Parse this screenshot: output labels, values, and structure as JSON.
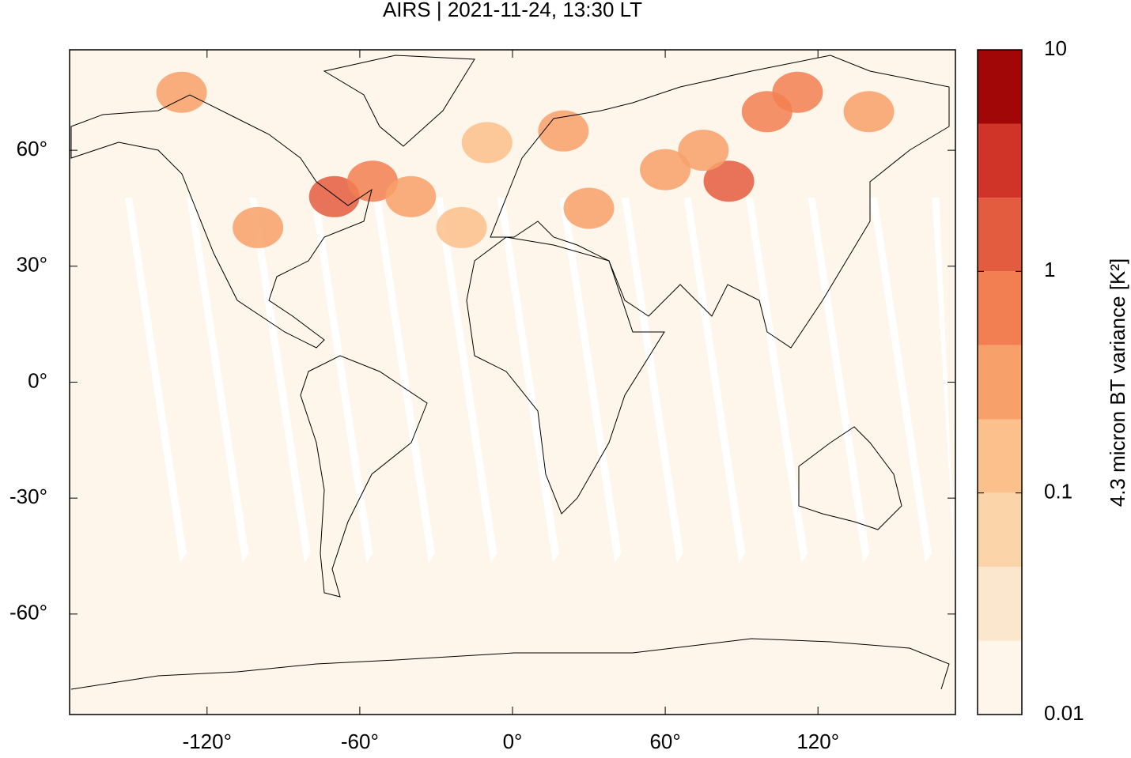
{
  "chart_data": {
    "type": "map",
    "title": "AIRS | 2021-11-24, 13:30 LT",
    "xlim": [
      -174,
      174
    ],
    "ylim": [
      -86,
      86
    ],
    "xticks": [
      {
        "value": -120,
        "label": "-120°"
      },
      {
        "value": -60,
        "label": "-60°"
      },
      {
        "value": 0,
        "label": "0°"
      },
      {
        "value": 60,
        "label": "60°"
      },
      {
        "value": 120,
        "label": "120°"
      }
    ],
    "yticks": [
      {
        "value": 60,
        "label": "60°"
      },
      {
        "value": 30,
        "label": "30°"
      },
      {
        "value": 0,
        "label": "0°"
      },
      {
        "value": -30,
        "label": "-30°"
      },
      {
        "value": -60,
        "label": "-60°"
      }
    ],
    "colorbar": {
      "label": "4.3 micron BT variance [K²]",
      "log_scale": true,
      "lim": [
        0.01,
        10
      ],
      "ticks": [
        10,
        1,
        0.1,
        0.01
      ],
      "levels": [
        0.01,
        0.0215,
        0.0464,
        0.1,
        0.215,
        0.464,
        1,
        2.15,
        4.64,
        10
      ],
      "colors": [
        "#fef6ea",
        "#fbe7cd",
        "#fbd5a9",
        "#fbc08b",
        "#f8a06a",
        "#f27f51",
        "#e45c3f",
        "#d03327",
        "#a10707"
      ]
    },
    "points": {
      "lon": [
        -70,
        -55,
        -100,
        -40,
        85,
        100,
        112,
        20,
        30,
        60,
        -130,
        -20,
        140,
        -10,
        75
      ],
      "lat": [
        48,
        52,
        40,
        48,
        52,
        70,
        75,
        65,
        45,
        55,
        75,
        40,
        70,
        62,
        60
      ],
      "values": [
        1.5,
        0.6,
        0.3,
        0.3,
        1.5,
        0.8,
        0.6,
        0.4,
        0.3,
        0.3,
        0.3,
        0.2,
        0.3,
        0.2,
        0.4
      ]
    }
  }
}
